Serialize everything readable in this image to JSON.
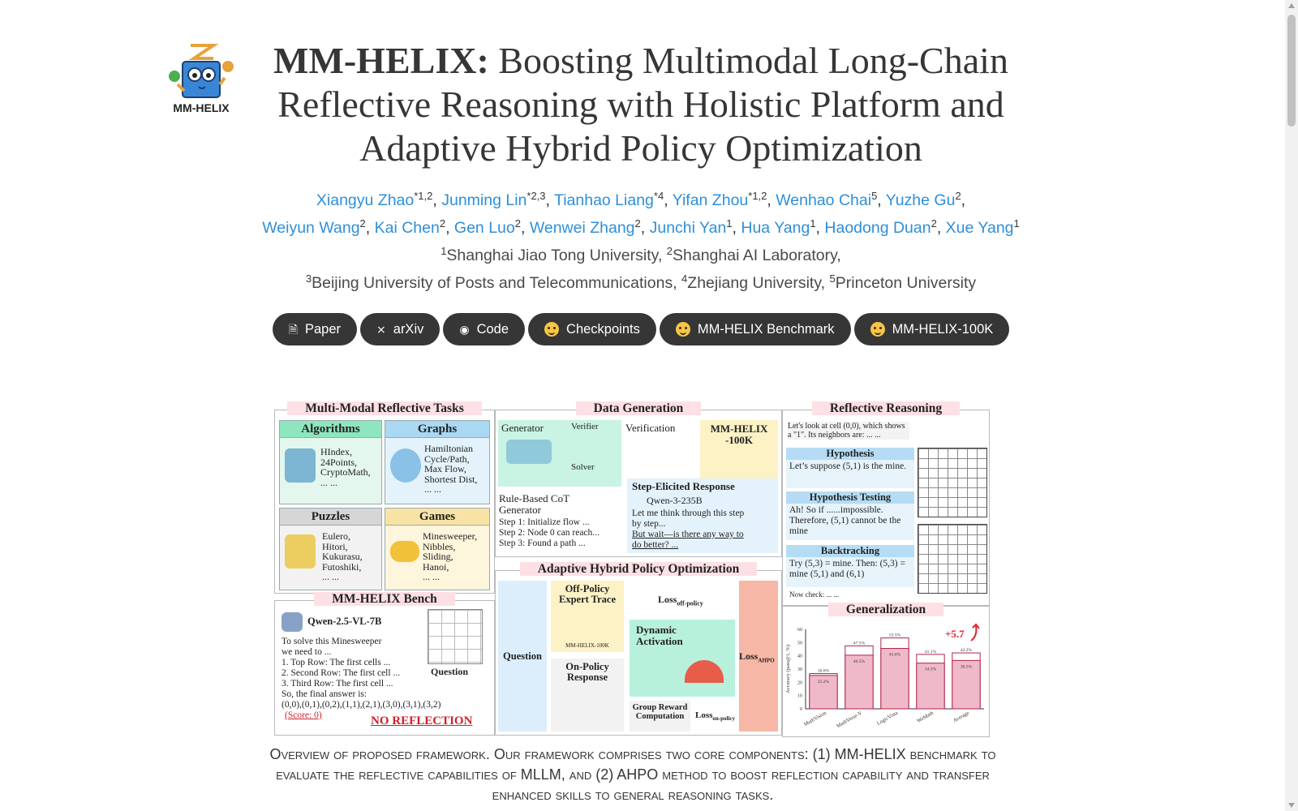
{
  "title": {
    "bold": "MM-HELIX:",
    "rest": " Boosting Multimodal Long-Chain Reflective Reasoning with Holistic Platform and Adaptive Hybrid Policy Optimization"
  },
  "logo": {
    "icon": "owl-book-mascot-icon",
    "text": "MM-HELIX"
  },
  "authors": [
    {
      "name": "Xiangyu Zhao",
      "sup": "*1,2"
    },
    {
      "name": "Junming Lin",
      "sup": "*2,3"
    },
    {
      "name": "Tianhao Liang",
      "sup": "*4"
    },
    {
      "name": "Yifan Zhou",
      "sup": "*1,2"
    },
    {
      "name": "Wenhao Chai",
      "sup": "5"
    },
    {
      "name": "Yuzhe Gu",
      "sup": "2"
    },
    {
      "name": "Weiyun Wang",
      "sup": "2"
    },
    {
      "name": "Kai Chen",
      "sup": "2"
    },
    {
      "name": "Gen Luo",
      "sup": "2"
    },
    {
      "name": "Wenwei Zhang",
      "sup": "2"
    },
    {
      "name": "Junchi Yan",
      "sup": "1"
    },
    {
      "name": "Hua Yang",
      "sup": "1"
    },
    {
      "name": "Haodong Duan",
      "sup": "2"
    },
    {
      "name": "Xue Yang",
      "sup": "1"
    }
  ],
  "affiliations": [
    {
      "sup": "1",
      "name": "Shanghai Jiao Tong University,"
    },
    {
      "sup": "2",
      "name": "Shanghai AI Laboratory,"
    },
    {
      "sup": "3",
      "name": "Beijing University of Posts and Telecommunications,"
    },
    {
      "sup": "4",
      "name": "Zhejiang University,"
    },
    {
      "sup": "5",
      "name": "Princeton University"
    }
  ],
  "buttons": [
    {
      "label": "Paper",
      "icon": "pdf-icon"
    },
    {
      "label": "arXiv",
      "icon": "arxiv-icon"
    },
    {
      "label": "Code",
      "icon": "github-icon"
    },
    {
      "label": "Checkpoints",
      "icon": "hugging-face-icon"
    },
    {
      "label": "MM-HELIX Benchmark",
      "icon": "hugging-face-icon"
    },
    {
      "label": "MM-HELIX-100K",
      "icon": "hugging-face-icon"
    }
  ],
  "figure": {
    "tasks": {
      "title": "Multi-Modal Reflective Tasks",
      "algorithms": {
        "head": "Algorithms",
        "lines": [
          "HIndex,",
          "24Points,",
          "CryptoMath,",
          "... ..."
        ]
      },
      "graphs": {
        "head": "Graphs",
        "lines": [
          "Hamiltonian",
          "Cycle/Path,",
          "Max Flow,",
          "Shortest Dist,",
          "... ..."
        ]
      },
      "puzzles": {
        "head": "Puzzles",
        "lines": [
          "Eulero,",
          "Hitori,",
          "Kukurasu,",
          "Futoshiki,",
          "... ..."
        ]
      },
      "games": {
        "head": "Games",
        "lines": [
          "Minesweeper,",
          "Nibbles,",
          "Sliding,",
          "Hanoi,",
          "... ..."
        ]
      }
    },
    "bench": {
      "title": "MM-HELIX Bench",
      "model": "Qwen-2.5-VL-7B",
      "lines": [
        "To solve this Minesweeper",
        "we need to ...",
        "1. Top Row: The first cells ...",
        "2. Second Row: The first cell ...",
        "3. Third Row: The first cell ...",
        "So, the final answer is:",
        "(0,0),(0,1),(0,2),(1,1),(2,1),(3,0),(3,1),(3,2)"
      ],
      "score": "(Score: 0)",
      "question": "Question",
      "no_reflection": "NO REFLECTION"
    },
    "datagen": {
      "title": "Data Generation",
      "generator": "Generator",
      "verifier": "Verifier",
      "solver": "Solver",
      "verification": "Verification",
      "dataset": "MM-HELIX -100K",
      "rule_based": "Rule-Based CoT Generator",
      "steps": [
        "Step 1: Initialize flow ...",
        "Step 2: Node 0 can reach...",
        "Step 3: Found a path ..."
      ],
      "step_elicited": "Step-Elicited Response",
      "qwen": "Qwen-3-235B",
      "response": [
        "Let me think through this step",
        "by step..."
      ],
      "wait": [
        "But wait—is there any way to",
        "do better? ..."
      ]
    },
    "ahpo": {
      "title": "Adaptive Hybrid Policy Optimization",
      "question": "Question",
      "off_policy": "Off-Policy Expert Trace",
      "dataset_small": "MM-HELIX-100K",
      "loss_off": "Loss",
      "loss_off_sub": "off-policy",
      "dynamic": "Dynamic Activation",
      "on_policy": "On-Policy Response",
      "group_reward": "Group Reward Computation",
      "loss_on": "Loss",
      "loss_on_sub": "on-policy",
      "loss_ahpo": "Loss",
      "loss_ahpo_sub": "AHPO"
    },
    "reflective": {
      "title": "Reflective Reasoning",
      "intro": "Let's look at cell (0,0), which shows a \"1\". Its neighbors are: ... ...",
      "hypothesis": "Hypothesis",
      "hyp_text": "Let’s suppose (5,1) is the mine.",
      "testing": "Hypothesis Testing",
      "test_text": "Ah! So if ......impossible. Therefore, (5,1) cannot be the mine",
      "backtracking": "Backtracking",
      "back_text": "Try (5,3) = mine. Then: (5,3) = mine (5,1) and (6,1)",
      "now_check": "Now check: ... ...",
      "dots": "... ..."
    }
  },
  "chart_data": {
    "type": "bar",
    "title": "Generalization",
    "ylabel": "Accuracy (pass@1, %)",
    "categories": [
      "MathVision",
      "MathVerse-V",
      "LogicVista",
      "WeMath",
      "Average"
    ],
    "series": [
      {
        "values": [
          25.2,
          40.5,
          45.6,
          34.5,
          36.5
        ]
      },
      {
        "values": [
          26.6,
          47.5,
          53.5,
          41.1,
          42.2
        ]
      }
    ],
    "labels_top": [
      "26.6%",
      "47.5%",
      "53.5%",
      "41.1%",
      "42.2%"
    ],
    "labels_inner": [
      "25.2%",
      "40.5%",
      "45.6%",
      "34.5%",
      "36.5%"
    ],
    "annotation": "+5.7",
    "ylim": [
      0,
      60
    ],
    "yticks": [
      0,
      10,
      20,
      30,
      40,
      50,
      60
    ]
  },
  "caption": "Overview of proposed framework. Our framework comprises two core components: (1) MM-HELIX benchmark to evaluate the reflective capabilities of MLLM, and (2) AHPO method to boost reflection capability and transfer enhanced skills to general reasoning tasks."
}
